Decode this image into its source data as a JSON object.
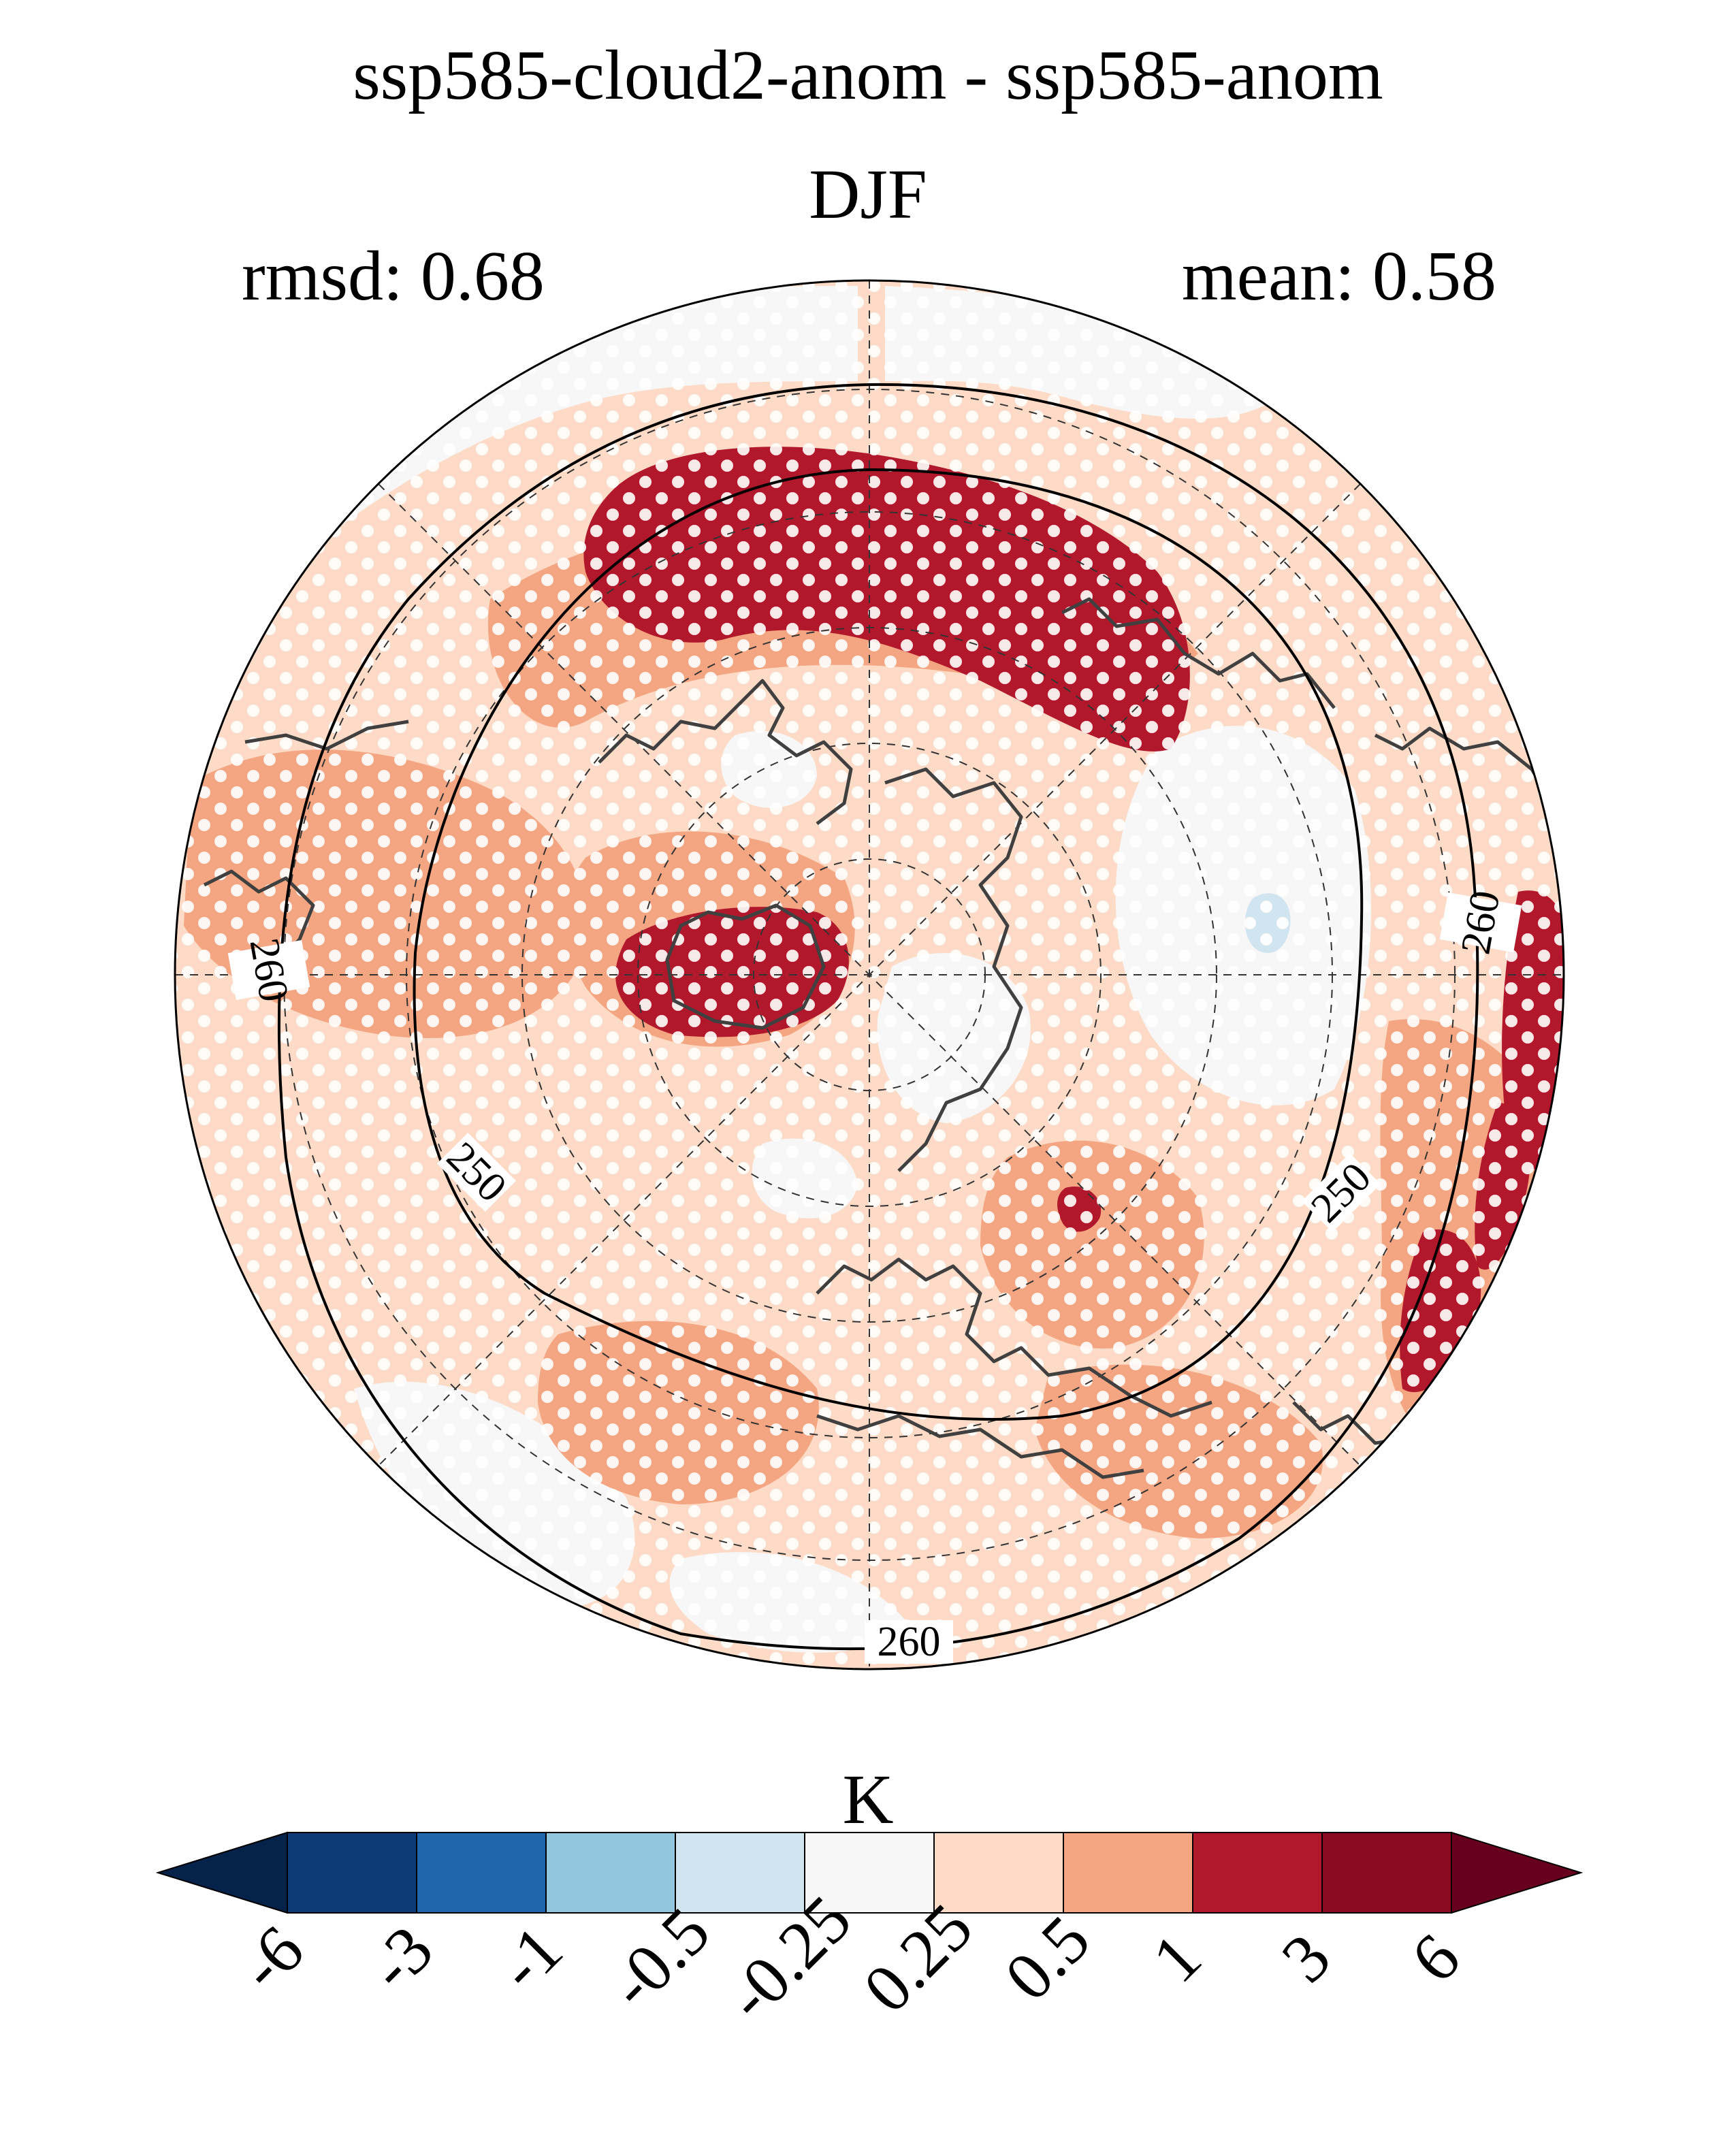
{
  "figure": {
    "title_line1": "ssp585-cloud2-anom - ssp585-anom",
    "title_line2": "DJF",
    "rmsd_text": "rmsd: 0.68",
    "mean_text": "mean: 0.58"
  },
  "colorbar": {
    "unit_label": "K",
    "tick_labels": [
      "-6",
      "-3",
      "-1",
      "-0.5",
      "-0.25",
      "0.25",
      "0.5",
      "1",
      "3",
      "6"
    ],
    "colors": [
      "#05234a",
      "#0d3b78",
      "#2166ac",
      "#92c5de",
      "#d1e5f0",
      "#f7f7f7",
      "#fddbc7",
      "#f4a582",
      "#b2182b",
      "#8a0a23",
      "#67001f"
    ]
  },
  "map": {
    "projection": "north-polar-stereographic",
    "background_color": "#fddbc7",
    "contour_labels": [
      "260",
      "260",
      "250",
      "250",
      "260"
    ],
    "colors": {
      "land_outline": "#404040",
      "strong_warm": "#b2182b",
      "warm": "#f4a582",
      "neutral": "#f7f7f7",
      "cool": "#d1e5f0",
      "stipple": "#ffffff"
    }
  }
}
